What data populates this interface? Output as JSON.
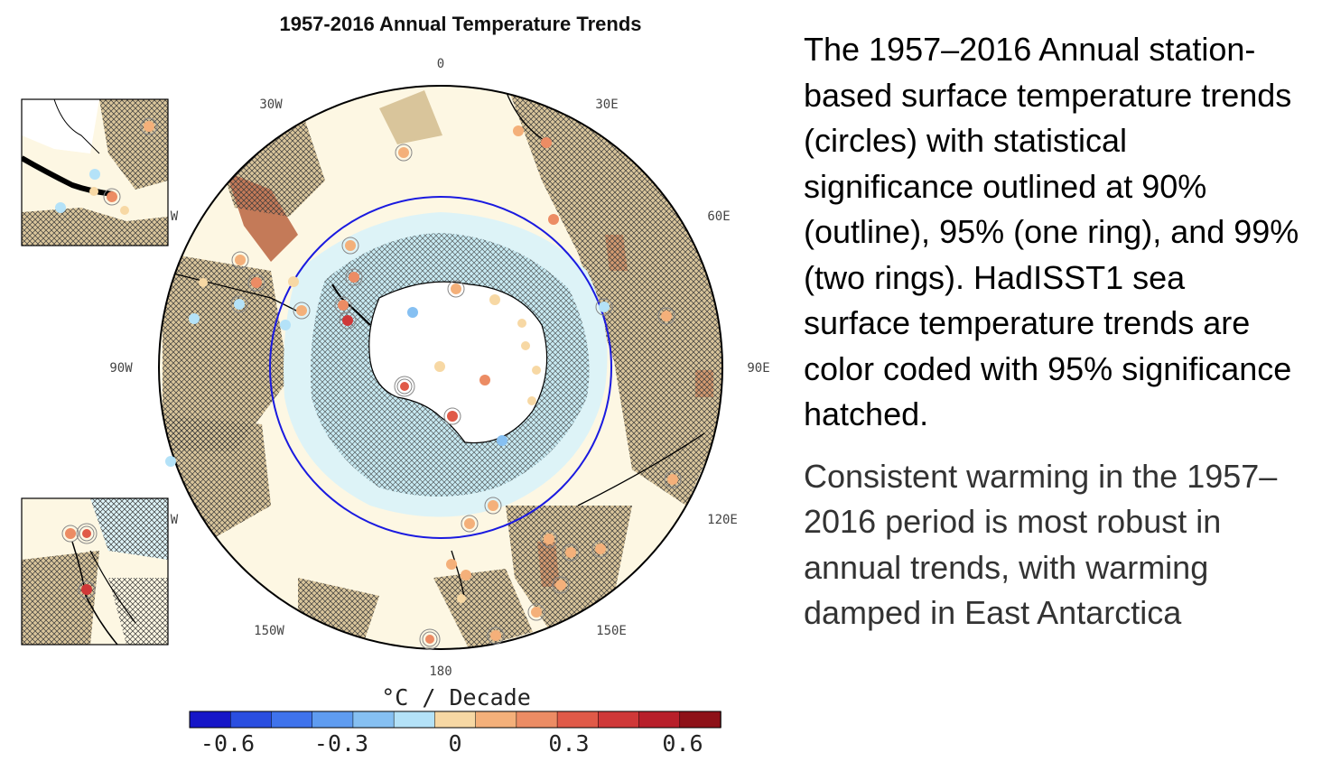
{
  "figure": {
    "title": "1957-2016 Annual Temperature Trends",
    "longitude_labels": [
      "0",
      "30E",
      "60E",
      "90E",
      "120E",
      "150E",
      "180",
      "150W",
      "90W",
      "30W",
      "W",
      "W"
    ],
    "colorbar": {
      "unit": "°C / Decade",
      "tick_labels": [
        "-0.6",
        "-0.3",
        "0",
        "0.3",
        "0.6"
      ],
      "colors": [
        "#1616c8",
        "#2a4ee0",
        "#3f73ec",
        "#5f9cf0",
        "#86c0f2",
        "#b4e2f8",
        "#f7d8a4",
        "#f4b07a",
        "#ec8c64",
        "#e05a48",
        "#cf3838",
        "#b81f2a",
        "#8e1118"
      ]
    },
    "colors": {
      "warm_land": "#d9c59b",
      "ocean_neutral": "#fdf7e3",
      "ocean_cool": "#ddf3f7",
      "ocean_cooler": "#b6e1ef",
      "hatch": "#333333",
      "circle_70S": "#1a1ae0",
      "station_outline": "#888888"
    }
  },
  "text": {
    "description": "The 1957–2016 Annual station-based surface temperature trends (circles) with statistical significance outlined at 90% (outline), 95% (one ring), and 99% (two rings). HadISST1 sea surface temperature trends are color coded with 95% significance hatched.",
    "conclusion": "Consistent warming in the 1957–2016 period is most robust in annual trends, with warming damped in East Antarctica"
  }
}
